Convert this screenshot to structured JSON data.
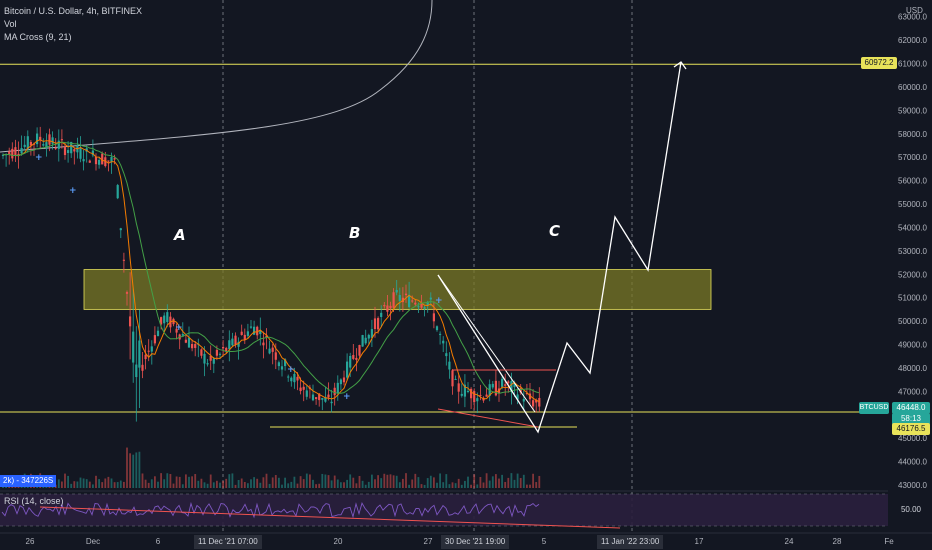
{
  "legend": {
    "title": "Bitcoin / U.S. Dollar, 4h, BITFINEX",
    "volume": "Vol",
    "ma_cross": "MA Cross (9, 21)",
    "volume_badge": "2k) - 347226S",
    "rsi": "RSI (14, close)",
    "rsi_value": "50.00"
  },
  "price_axis": {
    "currency": "USD",
    "ticks": [
      "63000.0",
      "62000.0",
      "61000.0",
      "60000.0",
      "59000.0",
      "58000.0",
      "57000.0",
      "56000.0",
      "55000.0",
      "54000.0",
      "53000.0",
      "52000.0",
      "51000.0",
      "50000.0",
      "49000.0",
      "48000.0",
      "47000.0",
      "46000.0",
      "45000.0",
      "44000.0",
      "43000.0"
    ],
    "price_labels": {
      "target": "60972.2",
      "symbol": "BTCUSD",
      "last": "46448.0",
      "countdown": "58:13",
      "support": "46176.5"
    }
  },
  "time_axis": {
    "ticks": [
      "26",
      "Dec",
      "6",
      "20",
      "27",
      "5",
      "17",
      "24",
      "28",
      "Fe"
    ],
    "highlighted": [
      "11 Dec '21  07:00",
      "30 Dec '21  19:00",
      "11 Jan '22  23:00"
    ]
  },
  "annotations": {
    "wave_labels": [
      "A",
      "B",
      "C"
    ]
  },
  "colors": {
    "background": "#131722",
    "up_candle": "#26a69a",
    "down_candle": "#ef5350",
    "fast_ma": "#f57c00",
    "slow_ma": "#43a047",
    "level_line": "#e8e35a",
    "zone_fill": "#7b7a26",
    "projection": "#ffffff",
    "rsi_line": "#7e57c2",
    "rsi_band": "#2a1f3d"
  },
  "chart_data": {
    "type": "candlestick",
    "symbol": "BTCUSD",
    "exchange": "BITFINEX",
    "interval": "4h",
    "ylim": [
      43000,
      63500
    ],
    "horizontal_levels": [
      60972.2,
      46176.5,
      45900
    ],
    "resistance_zone": [
      50500,
      52200
    ],
    "projection_path": [
      {
        "x": "27 Dec",
        "y": 52000
      },
      {
        "x": "4 Jan",
        "y": 45600
      },
      {
        "x": "6 Jan",
        "y": 49200
      },
      {
        "x": "8 Jan",
        "y": 47800
      },
      {
        "x": "10 Jan",
        "y": 55000
      },
      {
        "x": "12 Jan",
        "y": 52200
      },
      {
        "x": "15 Jan",
        "y": 61100
      }
    ],
    "sessions": [
      {
        "x": "25 Nov",
        "price": 57000
      },
      {
        "x": "28 Nov",
        "price": 57800
      },
      {
        "x": "1 Dec",
        "price": 57200
      },
      {
        "x": "3 Dec",
        "price": 56800
      },
      {
        "x": "4 Dec",
        "price": 47500
      },
      {
        "x": "6 Dec",
        "price": 50200
      },
      {
        "x": "9 Dec",
        "price": 48200
      },
      {
        "x": "12 Dec",
        "price": 49800
      },
      {
        "x": "15 Dec",
        "price": 47200
      },
      {
        "x": "18 Dec",
        "price": 46500
      },
      {
        "x": "21 Dec",
        "price": 48600
      },
      {
        "x": "24 Dec",
        "price": 51000
      },
      {
        "x": "27 Dec",
        "price": 50800
      },
      {
        "x": "29 Dec",
        "price": 47200
      },
      {
        "x": "31 Dec",
        "price": 46800
      },
      {
        "x": "2 Jan",
        "price": 47300
      },
      {
        "x": "4 Jan",
        "price": 46400
      }
    ]
  }
}
